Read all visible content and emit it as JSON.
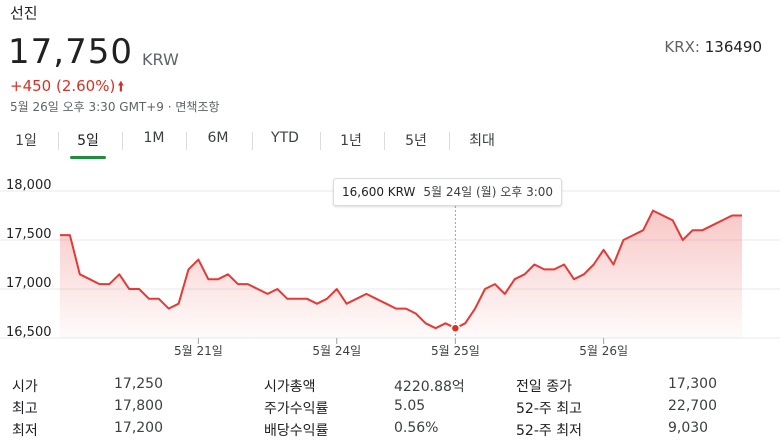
{
  "header": {
    "name": "선진",
    "price": "17,750",
    "currency": "KRW",
    "ticker_prefix": "KRX:",
    "ticker_code": "136490",
    "change": "+450 (2.60%)",
    "timestamp": "5월 26일 오후 3:30 GMT+9 · 면책조항"
  },
  "colors": {
    "positive": "#d93025",
    "line": "#e53935",
    "active_tab": "#1e8e3e"
  },
  "icons": {
    "change_arrow": "arrow-up-icon"
  },
  "tabs": [
    {
      "label": "1일",
      "active": false
    },
    {
      "label": "5일",
      "active": true
    },
    {
      "label": "1M",
      "active": false
    },
    {
      "label": "6M",
      "active": false
    },
    {
      "label": "YTD",
      "active": false
    },
    {
      "label": "1년",
      "active": false
    },
    {
      "label": "5년",
      "active": false
    },
    {
      "label": "최대",
      "active": false
    }
  ],
  "tooltip": {
    "value": "16,600 KRW",
    "date": "5월 24일 (월) 오후 3:00"
  },
  "chart_data": {
    "type": "area",
    "ylim": [
      16500,
      18000
    ],
    "yticks": [
      "18,000",
      "17,500",
      "17,000",
      "16,500"
    ],
    "ytick_values": [
      18000,
      17500,
      17000,
      16500
    ],
    "xticks": [
      "5월 21일",
      "5월 24일",
      "5월 25일",
      "5월 26일"
    ],
    "xtick_index": [
      14,
      28,
      40,
      55
    ],
    "highlight_index": 40,
    "values": [
      17550,
      17550,
      17150,
      17100,
      17050,
      17050,
      17150,
      17000,
      17000,
      16900,
      16900,
      16800,
      16850,
      17200,
      17300,
      17100,
      17100,
      17150,
      17050,
      17050,
      17000,
      16950,
      17000,
      16900,
      16900,
      16900,
      16850,
      16900,
      17000,
      16850,
      16900,
      16950,
      16900,
      16850,
      16800,
      16800,
      16750,
      16650,
      16600,
      16650,
      16600,
      16650,
      16800,
      17000,
      17050,
      16950,
      17100,
      17150,
      17250,
      17200,
      17200,
      17250,
      17100,
      17150,
      17250,
      17400,
      17250,
      17500,
      17550,
      17600,
      17800,
      17750,
      17700,
      17500,
      17600,
      17600,
      17650,
      17700,
      17750,
      17750
    ]
  },
  "stats": [
    {
      "label": "시가",
      "value": "17,250"
    },
    {
      "label": "최고",
      "value": "17,800"
    },
    {
      "label": "최저",
      "value": "17,200"
    },
    {
      "label": "시가총액",
      "value": "4220.88억"
    },
    {
      "label": "주가수익률",
      "value": "5.05"
    },
    {
      "label": "배당수익률",
      "value": "0.56%"
    },
    {
      "label": "전일 종가",
      "value": "17,300"
    },
    {
      "label": "52-주 최고",
      "value": "22,700"
    },
    {
      "label": "52-주 최저",
      "value": "9,030"
    }
  ]
}
